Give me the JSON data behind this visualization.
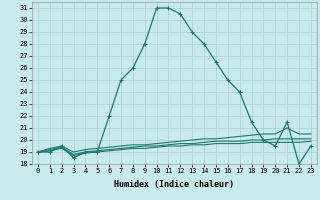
{
  "title": "",
  "xlabel": "Humidex (Indice chaleur)",
  "background_color": "#c8eaea",
  "grid_color": "#aacccc",
  "line_color": "#1a7a6e",
  "xlim": [
    -0.5,
    23.5
  ],
  "ylim": [
    18,
    31.5
  ],
  "xticks": [
    0,
    1,
    2,
    3,
    4,
    5,
    6,
    7,
    8,
    9,
    10,
    11,
    12,
    13,
    14,
    15,
    16,
    17,
    18,
    19,
    20,
    21,
    22,
    23
  ],
  "yticks": [
    18,
    19,
    20,
    21,
    22,
    23,
    24,
    25,
    26,
    27,
    28,
    29,
    30,
    31
  ],
  "curves": [
    {
      "x": [
        0,
        1,
        2,
        3,
        4,
        5,
        6,
        7,
        8,
        9,
        10,
        11,
        12,
        13,
        14,
        15,
        16,
        17,
        18,
        19,
        20,
        21,
        22,
        23
      ],
      "y": [
        19,
        19,
        19.5,
        18.5,
        19,
        19,
        22,
        25,
        26,
        28,
        31,
        31,
        30.5,
        29,
        28,
        26.5,
        25,
        24,
        21.5,
        20,
        19.5,
        21.5,
        18,
        19.5
      ],
      "marker": true,
      "linestyle": "-",
      "linewidth": 0.9
    },
    {
      "x": [
        0,
        1,
        2,
        3,
        4,
        5,
        6,
        7,
        8,
        9,
        10,
        11,
        12,
        13,
        14,
        15,
        16,
        17,
        18,
        19,
        20,
        21,
        22,
        23
      ],
      "y": [
        19,
        19.3,
        19.5,
        19.0,
        19.2,
        19.3,
        19.4,
        19.5,
        19.6,
        19.6,
        19.7,
        19.8,
        19.9,
        20.0,
        20.1,
        20.1,
        20.2,
        20.3,
        20.4,
        20.5,
        20.5,
        21.0,
        20.5,
        20.5
      ],
      "marker": false,
      "linestyle": "-",
      "linewidth": 0.8
    },
    {
      "x": [
        0,
        1,
        2,
        3,
        4,
        5,
        6,
        7,
        8,
        9,
        10,
        11,
        12,
        13,
        14,
        15,
        16,
        17,
        18,
        19,
        20,
        21,
        22,
        23
      ],
      "y": [
        19,
        19.2,
        19.4,
        18.8,
        19.0,
        19.1,
        19.2,
        19.3,
        19.4,
        19.5,
        19.5,
        19.6,
        19.7,
        19.7,
        19.8,
        19.9,
        19.9,
        19.9,
        20.0,
        20.0,
        20.1,
        20.1,
        20.1,
        20.1
      ],
      "marker": false,
      "linestyle": "-",
      "linewidth": 0.8
    },
    {
      "x": [
        0,
        1,
        2,
        3,
        4,
        5,
        6,
        7,
        8,
        9,
        10,
        11,
        12,
        13,
        14,
        15,
        16,
        17,
        18,
        19,
        20,
        21,
        22,
        23
      ],
      "y": [
        19,
        19.1,
        19.3,
        18.7,
        18.9,
        19.0,
        19.1,
        19.2,
        19.3,
        19.3,
        19.4,
        19.5,
        19.5,
        19.6,
        19.6,
        19.7,
        19.7,
        19.7,
        19.8,
        19.8,
        19.8,
        19.8,
        19.8,
        19.9
      ],
      "marker": false,
      "linestyle": "-",
      "linewidth": 0.8
    }
  ]
}
